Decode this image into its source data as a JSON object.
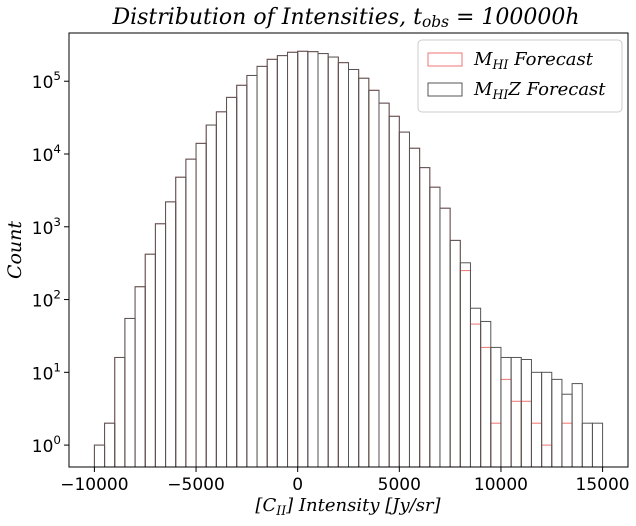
{
  "chart_data": {
    "type": "histogram",
    "title": "Distribution of Intensities,  t_{obs}  =  100000h",
    "xlabel": "[C_{II}] Intensity [Jy/sr]",
    "ylabel": "Count",
    "bins": [
      -10000,
      -9500,
      -9000,
      -8500,
      -8000,
      -7500,
      -7000,
      -6500,
      -6000,
      -5500,
      -5000,
      -4500,
      -4000,
      -3500,
      -3000,
      -2500,
      -2000,
      -1500,
      -1000,
      -500,
      0,
      500,
      1000,
      1500,
      2000,
      2500,
      3000,
      3500,
      4000,
      4500,
      5000,
      5500,
      6000,
      6500,
      7000,
      7500,
      8000,
      8500,
      9000,
      9500,
      10000,
      10500,
      11000,
      11500,
      12000,
      12500,
      13000,
      13500,
      14000,
      14500,
      15000
    ],
    "series": [
      {
        "name": "M_{HI} Forecast",
        "color": "#f07470",
        "values": [
          1,
          2,
          16,
          55,
          150,
          420,
          1100,
          2200,
          4800,
          8500,
          14000,
          25000,
          38000,
          60000,
          88000,
          120000,
          160000,
          200000,
          225000,
          250000,
          258000,
          255000,
          240000,
          215000,
          180000,
          145000,
          110000,
          75000,
          50000,
          33000,
          20000,
          12000,
          6500,
          3500,
          1800,
          650,
          250,
          46,
          22,
          2,
          8,
          4,
          4,
          2,
          1,
          0,
          2,
          0,
          0,
          0
        ]
      },
      {
        "name": "M_{HI}Z Forecast",
        "color": "#555555",
        "values": [
          1,
          2,
          16,
          55,
          150,
          420,
          1100,
          2200,
          4800,
          8500,
          14000,
          25000,
          38000,
          60000,
          88000,
          120000,
          160000,
          200000,
          225000,
          250000,
          258000,
          255000,
          240000,
          215000,
          180000,
          145000,
          110000,
          75000,
          50000,
          33000,
          20000,
          12000,
          6500,
          3500,
          1800,
          650,
          320,
          76,
          50,
          22,
          16,
          16,
          15,
          10,
          10,
          8,
          5,
          7,
          2,
          2
        ]
      }
    ],
    "xlim": [
      -11250,
      16250
    ],
    "xticks": [
      {
        "value": -10000,
        "label": "−10000"
      },
      {
        "value": -5000,
        "label": "−5000"
      },
      0,
      5000,
      10000,
      15000
    ],
    "ylim": [
      0.5,
      460000
    ],
    "yticks": [
      {
        "value": 1,
        "label": "10^{0}"
      },
      {
        "value": 10,
        "label": "10^{1}"
      },
      {
        "value": 100,
        "label": "10^{2}"
      },
      {
        "value": 1000,
        "label": "10^{3}"
      },
      {
        "value": 10000,
        "label": "10^{4}"
      },
      {
        "value": 100000,
        "label": "10^{5}"
      }
    ],
    "log_y": true,
    "legend": "upper right"
  }
}
